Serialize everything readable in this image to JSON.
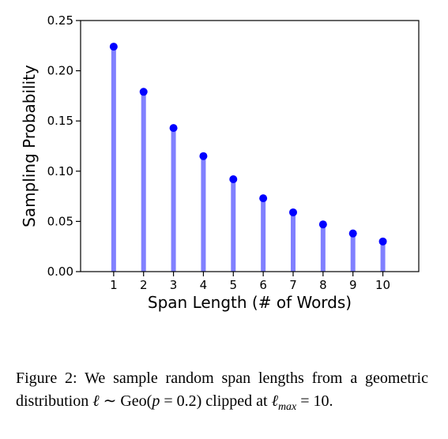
{
  "chart_data": {
    "type": "stem",
    "categories": [
      "1",
      "2",
      "3",
      "4",
      "5",
      "6",
      "7",
      "8",
      "9",
      "10"
    ],
    "x": [
      1,
      2,
      3,
      4,
      5,
      6,
      7,
      8,
      9,
      10
    ],
    "values": [
      0.224,
      0.179,
      0.143,
      0.115,
      0.092,
      0.073,
      0.059,
      0.047,
      0.038,
      0.03
    ],
    "xlabel": "Span Length (# of Words)",
    "ylabel": "Sampling Probability",
    "ylim": [
      0,
      0.25
    ],
    "yticks": [
      "0.00",
      "0.05",
      "0.10",
      "0.15",
      "0.20",
      "0.25"
    ],
    "grid": false,
    "colors": {
      "stem": "#8080ff",
      "marker": "#0000ff"
    }
  },
  "caption": {
    "prefix": "Figure 2: We sample random span lengths from a geometric distribution ",
    "ell": "ℓ",
    "sim": " ∼ ",
    "geo": "Geo(",
    "p": "p",
    "eq": " = 0.2)",
    "middle": " clipped at ",
    "ell_max": "ℓ",
    "max_sub": "max",
    "end": " = 10."
  }
}
